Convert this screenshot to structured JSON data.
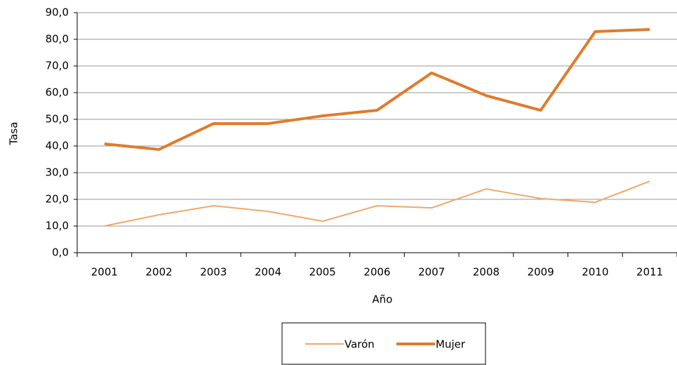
{
  "chart_data": {
    "type": "line",
    "xlabel": "Año",
    "ylabel": "Tasa",
    "categories": [
      "2001",
      "2002",
      "2003",
      "2004",
      "2005",
      "2006",
      "2007",
      "2008",
      "2009",
      "2010",
      "2011"
    ],
    "series": [
      {
        "name": "Varón",
        "color": "#f0a86a",
        "width": 2,
        "values": [
          10.0,
          14.2,
          17.6,
          15.5,
          11.8,
          17.6,
          16.8,
          23.9,
          20.3,
          18.9,
          26.8
        ]
      },
      {
        "name": "Mujer",
        "color": "#e07b2a",
        "width": 4,
        "values": [
          40.8,
          38.7,
          48.4,
          48.4,
          51.3,
          53.4,
          67.4,
          58.9,
          53.4,
          82.9,
          83.7
        ]
      }
    ],
    "ylim": [
      0,
      90
    ],
    "yticks": [
      {
        "value": 0,
        "label": "0,0"
      },
      {
        "value": 10,
        "label": "10,0"
      },
      {
        "value": 20,
        "label": "20,0"
      },
      {
        "value": 30,
        "label": "30,0"
      },
      {
        "value": 40,
        "label": "40,0"
      },
      {
        "value": 50,
        "label": "50,0"
      },
      {
        "value": 60,
        "label": "60,0"
      },
      {
        "value": 70,
        "label": "70,0"
      },
      {
        "value": 80,
        "label": "80,0"
      },
      {
        "value": 90,
        "label": "90,0"
      }
    ],
    "grid": true,
    "legend": "bottom"
  }
}
